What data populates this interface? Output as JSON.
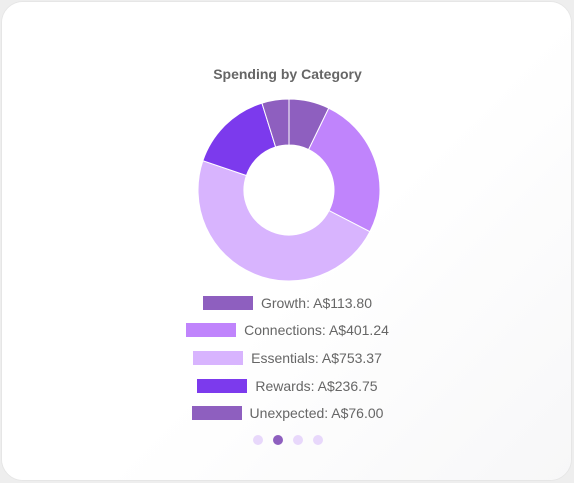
{
  "chart_data": {
    "type": "pie",
    "title": "Spending by Category",
    "currency": "A$",
    "categories": [
      "Growth",
      "Connections",
      "Essentials",
      "Rewards",
      "Unexpected"
    ],
    "values": [
      113.8,
      401.24,
      753.37,
      236.75,
      76.0
    ],
    "colors": [
      "#8e5fbf",
      "#c084fc",
      "#d8b4fe",
      "#7c3aed",
      "#8e5fbf"
    ],
    "legend_position": "bottom",
    "legend_labels": [
      "Growth: A$113.80",
      "Connections: A$401.24",
      "Essentials: A$753.37",
      "Rewards: A$236.75",
      "Unexpected: A$76.00"
    ],
    "hole": "donut"
  },
  "pagination": {
    "count": 4,
    "active_index": 1
  }
}
